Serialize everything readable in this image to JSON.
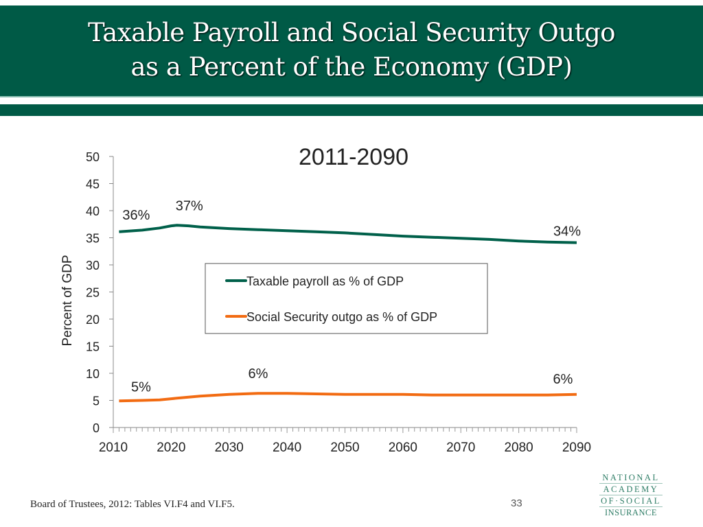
{
  "header": {
    "title_line1": "Taxable Payroll and Social Security Outgo",
    "title_line2": "as a Percent of the Economy (GDP)"
  },
  "footer": {
    "source": "Board of Trustees, 2012: Tables VI.F4 and VI.F5.",
    "page_number": "33"
  },
  "logo": {
    "lines": [
      "NATIONAL",
      "ACADEMY",
      "OF·SOCIAL",
      "INSURANCE"
    ]
  },
  "chart_data": {
    "type": "line",
    "title": "2011-2090",
    "ylabel": "Percent of GDP",
    "xlabel": "",
    "xlim": [
      2010,
      2090
    ],
    "ylim": [
      0,
      50
    ],
    "xticks": [
      2010,
      2020,
      2030,
      2040,
      2050,
      2060,
      2070,
      2080,
      2090
    ],
    "yticks": [
      0,
      5,
      10,
      15,
      20,
      25,
      30,
      35,
      40,
      45,
      50
    ],
    "grid": false,
    "legend": "center",
    "colors": {
      "taxable": "#00604a",
      "outgo": "#f26b12"
    },
    "x": [
      2011,
      2015,
      2018,
      2020,
      2021,
      2023,
      2025,
      2030,
      2035,
      2040,
      2045,
      2050,
      2055,
      2060,
      2065,
      2070,
      2075,
      2080,
      2085,
      2090
    ],
    "series": [
      {
        "name": "Taxable payroll as % of GDP",
        "color": "#00604a",
        "values": [
          36.1,
          36.4,
          36.8,
          37.2,
          37.3,
          37.2,
          37.0,
          36.7,
          36.5,
          36.3,
          36.1,
          35.9,
          35.6,
          35.3,
          35.1,
          34.9,
          34.7,
          34.4,
          34.2,
          34.1
        ]
      },
      {
        "name": "Social Security outgo as % of GDP",
        "color": "#f26b12",
        "values": [
          4.9,
          5.0,
          5.1,
          5.3,
          5.4,
          5.6,
          5.8,
          6.1,
          6.3,
          6.3,
          6.2,
          6.1,
          6.1,
          6.1,
          6.0,
          6.0,
          6.0,
          6.0,
          6.0,
          6.1
        ]
      }
    ],
    "annotations": [
      {
        "text": "36%",
        "x": 2011,
        "y": 36.1
      },
      {
        "text": "37%",
        "x": 2021,
        "y": 37.3
      },
      {
        "text": "34%",
        "x": 2090,
        "y": 34.1
      },
      {
        "text": "5%",
        "x": 2011,
        "y": 4.9
      },
      {
        "text": "6%",
        "x": 2035,
        "y": 6.3
      },
      {
        "text": "6%",
        "x": 2090,
        "y": 6.1
      }
    ]
  }
}
